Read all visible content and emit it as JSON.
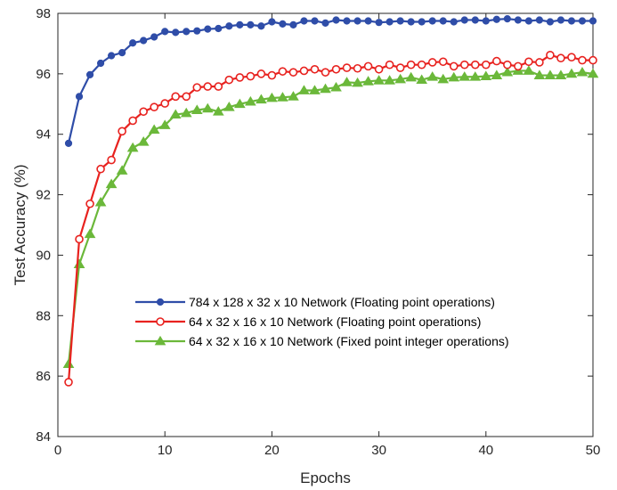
{
  "chart_data": {
    "type": "line",
    "xlabel": "Epochs",
    "ylabel": "Test Accuracy (%)",
    "xlim": [
      0,
      50
    ],
    "ylim": [
      84,
      98
    ],
    "x_ticks": [
      0,
      10,
      20,
      30,
      40,
      50
    ],
    "y_ticks": [
      84,
      86,
      88,
      90,
      92,
      94,
      96,
      98
    ],
    "grid": false,
    "legend_position": "center-right",
    "x": [
      1,
      2,
      3,
      4,
      5,
      6,
      7,
      8,
      9,
      10,
      11,
      12,
      13,
      14,
      15,
      16,
      17,
      18,
      19,
      20,
      21,
      22,
      23,
      24,
      25,
      26,
      27,
      28,
      29,
      30,
      31,
      32,
      33,
      34,
      35,
      36,
      37,
      38,
      39,
      40,
      41,
      42,
      43,
      44,
      45,
      46,
      47,
      48,
      49,
      50
    ],
    "series": [
      {
        "name": "784 x 128 x 32 x 10 Network (Floating point operations)",
        "color": "#2F4DA8",
        "marker": "dot",
        "values": [
          93.7,
          95.25,
          95.97,
          96.35,
          96.6,
          96.7,
          97.02,
          97.1,
          97.22,
          97.4,
          97.37,
          97.4,
          97.42,
          97.48,
          97.5,
          97.58,
          97.62,
          97.62,
          97.58,
          97.72,
          97.65,
          97.62,
          97.75,
          97.75,
          97.68,
          97.78,
          97.75,
          97.75,
          97.75,
          97.7,
          97.72,
          97.75,
          97.72,
          97.72,
          97.75,
          97.75,
          97.72,
          97.78,
          97.78,
          97.75,
          97.8,
          97.82,
          97.78,
          97.75,
          97.78,
          97.72,
          97.78,
          97.75,
          97.75,
          97.75
        ]
      },
      {
        "name": "64 x 32 x 16 x 10 Network (Floating point operations)",
        "color": "#E8221F",
        "marker": "circle",
        "values": [
          85.8,
          90.53,
          91.7,
          92.85,
          93.15,
          94.1,
          94.45,
          94.75,
          94.9,
          95.02,
          95.25,
          95.25,
          95.55,
          95.58,
          95.58,
          95.8,
          95.88,
          95.92,
          96.0,
          95.95,
          96.08,
          96.05,
          96.1,
          96.15,
          96.05,
          96.15,
          96.2,
          96.18,
          96.25,
          96.15,
          96.3,
          96.2,
          96.3,
          96.3,
          96.38,
          96.4,
          96.25,
          96.3,
          96.3,
          96.3,
          96.42,
          96.3,
          96.25,
          96.4,
          96.38,
          96.62,
          96.52,
          96.55,
          96.45,
          96.45
        ]
      },
      {
        "name": "64 x  32 x 16 x 10 Network (Fixed point integer operations)",
        "color": "#6BB83A",
        "marker": "triangle",
        "values": [
          86.4,
          89.7,
          90.7,
          91.75,
          92.35,
          92.8,
          93.55,
          93.75,
          94.15,
          94.3,
          94.65,
          94.7,
          94.8,
          94.85,
          94.75,
          94.9,
          95.0,
          95.08,
          95.15,
          95.2,
          95.22,
          95.25,
          95.45,
          95.45,
          95.5,
          95.55,
          95.72,
          95.7,
          95.75,
          95.78,
          95.78,
          95.82,
          95.88,
          95.8,
          95.9,
          95.82,
          95.88,
          95.9,
          95.9,
          95.92,
          95.95,
          96.05,
          96.1,
          96.1,
          95.95,
          95.95,
          95.95,
          96.0,
          96.05,
          96.0
        ]
      }
    ]
  }
}
